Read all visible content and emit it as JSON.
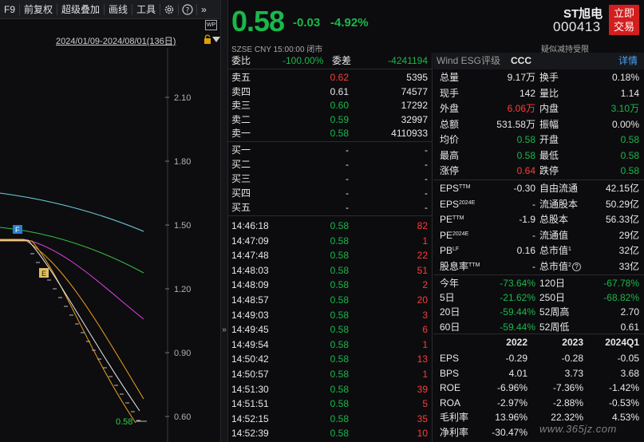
{
  "toolbar": {
    "f9": "F9",
    "fq": "前复权",
    "overlay": "超级叠加",
    "draw": "画线",
    "tools": "工具",
    "more": "»"
  },
  "chart": {
    "range_label": "2024/01/09-2024/08/01(136日)",
    "wp_label": "WP",
    "y_ticks": [
      "2.10",
      "1.80",
      "1.50",
      "1.20",
      "0.90",
      "0.60"
    ],
    "marker_f": "F",
    "marker_e": "E",
    "last_label": "0.58",
    "colors": {
      "cyan": "#6fd3e0",
      "green": "#38c040",
      "magenta": "#e040e0",
      "orange": "#f0a020",
      "white": "#e8e8e8"
    }
  },
  "header": {
    "price": "0.58",
    "change": "-0.03",
    "change_pct": "-4.92%",
    "meta": "SZSE  CNY  15:00:00  闭市",
    "name": "ST旭电",
    "code": "000413",
    "note": "疑似减持受限",
    "trade_btn": [
      "立即",
      "交易"
    ]
  },
  "book": {
    "webi_label": "委比",
    "webi_value": "-100.00%",
    "weicha_label": "委差",
    "weicha_value": "-4241194",
    "asks": [
      {
        "label": "卖五",
        "price": "0.62",
        "vol": "5395",
        "pc": "red"
      },
      {
        "label": "卖四",
        "price": "0.61",
        "vol": "74577",
        "pc": "white"
      },
      {
        "label": "卖三",
        "price": "0.60",
        "vol": "17292",
        "pc": "green"
      },
      {
        "label": "卖二",
        "price": "0.59",
        "vol": "32997",
        "pc": "green"
      },
      {
        "label": "卖一",
        "price": "0.58",
        "vol": "4110933",
        "pc": "green"
      }
    ],
    "bids": [
      {
        "label": "买一",
        "price": "-",
        "vol": "-"
      },
      {
        "label": "买二",
        "price": "-",
        "vol": "-"
      },
      {
        "label": "买三",
        "price": "-",
        "vol": "-"
      },
      {
        "label": "买四",
        "price": "-",
        "vol": "-"
      },
      {
        "label": "买五",
        "price": "-",
        "vol": "-"
      }
    ],
    "ticks": [
      {
        "time": "14:46:18",
        "price": "0.58",
        "vol": "82"
      },
      {
        "time": "14:47:09",
        "price": "0.58",
        "vol": "1"
      },
      {
        "time": "14:47:48",
        "price": "0.58",
        "vol": "22"
      },
      {
        "time": "14:48:03",
        "price": "0.58",
        "vol": "51"
      },
      {
        "time": "14:48:09",
        "price": "0.58",
        "vol": "2"
      },
      {
        "time": "14:48:57",
        "price": "0.58",
        "vol": "20"
      },
      {
        "time": "14:49:03",
        "price": "0.58",
        "vol": "3"
      },
      {
        "time": "14:49:45",
        "price": "0.58",
        "vol": "6"
      },
      {
        "time": "14:49:54",
        "price": "0.58",
        "vol": "1"
      },
      {
        "time": "14:50:42",
        "price": "0.58",
        "vol": "13"
      },
      {
        "time": "14:50:57",
        "price": "0.58",
        "vol": "1"
      },
      {
        "time": "14:51:30",
        "price": "0.58",
        "vol": "39"
      },
      {
        "time": "14:51:51",
        "price": "0.58",
        "vol": "5"
      },
      {
        "time": "14:52:15",
        "price": "0.58",
        "vol": "35"
      },
      {
        "time": "14:52:39",
        "price": "0.58",
        "vol": "10"
      }
    ]
  },
  "panel": {
    "wind": "Wind  ESG评级",
    "esg": "CCC",
    "detail": "详情",
    "stats": [
      {
        "l1": "总量",
        "v1": "9.17万",
        "c1": "white",
        "l2": "换手",
        "v2": "0.18%",
        "c2": "white"
      },
      {
        "l1": "现手",
        "v1": "142",
        "c1": "white",
        "l2": "量比",
        "v2": "1.14",
        "c2": "white"
      },
      {
        "l1": "外盘",
        "v1": "6.06万",
        "c1": "red",
        "l2": "内盘",
        "v2": "3.10万",
        "c2": "green"
      },
      {
        "l1": "总额",
        "v1": "531.58万",
        "c1": "white",
        "l2": "振幅",
        "v2": "0.00%",
        "c2": "white"
      },
      {
        "l1": "均价",
        "v1": "0.58",
        "c1": "green",
        "l2": "开盘",
        "v2": "0.58",
        "c2": "green"
      },
      {
        "l1": "最高",
        "v1": "0.58",
        "c1": "green",
        "l2": "最低",
        "v2": "0.58",
        "c2": "green"
      },
      {
        "l1": "涨停",
        "v1": "0.64",
        "c1": "red",
        "l2": "跌停",
        "v2": "0.58",
        "c2": "green"
      }
    ],
    "fund": [
      {
        "l1": "EPS",
        "s1": "TTM",
        "v1": "-0.30",
        "l2": "自由流通",
        "s2": "",
        "v2": "42.15亿"
      },
      {
        "l1": "EPS",
        "s1": "2024E",
        "v1": "-",
        "l2": "流通股本",
        "s2": "",
        "v2": "50.29亿"
      },
      {
        "l1": "PE",
        "s1": "TTM",
        "v1": "-1.9",
        "l2": "总股本",
        "s2": "",
        "v2": "56.33亿"
      },
      {
        "l1": "PE",
        "s1": "2024E",
        "v1": "-",
        "l2": "流通值",
        "s2": "",
        "v2": "29亿"
      },
      {
        "l1": "PB",
        "s1": "LF",
        "v1": "0.16",
        "l2": "总市值",
        "s2": "1",
        "v2": "32亿"
      },
      {
        "l1": "股息率",
        "s1": "TTM",
        "v1": "-",
        "l2": "总市值",
        "s2": "2",
        "v2": "33亿"
      }
    ],
    "perf": [
      {
        "l1": "今年",
        "v1": "-73.64%",
        "c1": "green",
        "l2": "120日",
        "v2": "-67.78%",
        "c2": "green"
      },
      {
        "l1": "5日",
        "v1": "-21.62%",
        "c1": "green",
        "l2": "250日",
        "v2": "-68.82%",
        "c2": "green"
      },
      {
        "l1": "20日",
        "v1": "-59.44%",
        "c1": "green",
        "l2": "52周高",
        "v2": "2.70",
        "c2": "white"
      },
      {
        "l1": "60日",
        "v1": "-59.44%",
        "c1": "green",
        "l2": "52周低",
        "v2": "0.61",
        "c2": "white"
      }
    ],
    "fin_headers": [
      "2022",
      "2023",
      "2024Q1"
    ],
    "fin": [
      {
        "l": "EPS",
        "a": "-0.29",
        "b": "-0.28",
        "c": "-0.05"
      },
      {
        "l": "BPS",
        "a": "4.01",
        "b": "3.73",
        "c": "3.68"
      },
      {
        "l": "ROE",
        "a": "-6.96%",
        "b": "-7.36%",
        "c": "-1.42%"
      },
      {
        "l": "ROA",
        "a": "-2.97%",
        "b": "-2.88%",
        "c": "-0.53%"
      },
      {
        "l": "毛利率",
        "a": "13.96%",
        "b": "22.32%",
        "c": "4.53%"
      },
      {
        "l": "净利率",
        "a": "-30.47%",
        "b": "",
        "c": ""
      }
    ]
  },
  "watermark": "www.365jz.com"
}
